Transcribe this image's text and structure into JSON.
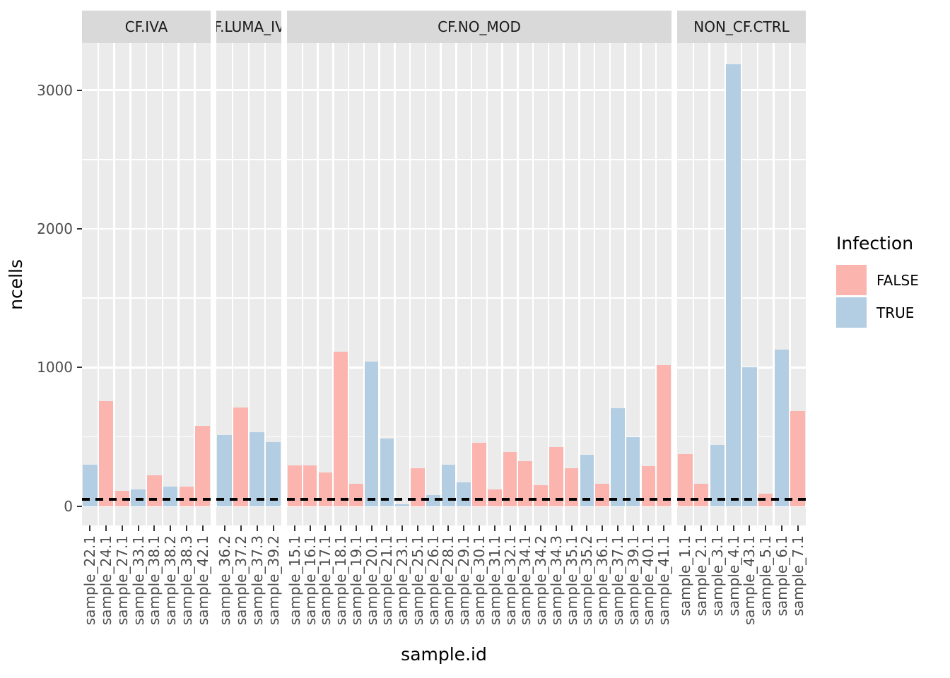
{
  "axes": {
    "x_title": "sample.id",
    "y_title": "ncells",
    "y_ticks": [
      0,
      1000,
      2000,
      3000
    ],
    "y_minor_ticks": [
      500,
      1500,
      2500
    ]
  },
  "legend": {
    "title": "Infection",
    "items": [
      {
        "label": "FALSE",
        "color": "#FBB4AE"
      },
      {
        "label": "TRUE",
        "color": "#B3CDE3"
      }
    ]
  },
  "reference_line": {
    "value": 50,
    "color": "#000000",
    "style": "dashed"
  },
  "colors": {
    "panel_bg": "#EBEBEB",
    "strip_bg": "#D9D9D9",
    "grid": "#FFFFFF",
    "axis_text": "#4D4D4D",
    "strip_text": "#1A1A1A",
    "tick": "#333333",
    "false_fill": "#FBB4AE",
    "true_fill": "#B3CDE3"
  },
  "chart_data": {
    "type": "bar",
    "title": "",
    "xlabel": "sample.id",
    "ylabel": "ncells",
    "ylim": [
      0,
      3340
    ],
    "legend_title": "Infection",
    "hline": 50,
    "facets": [
      {
        "label": "CF.IVA",
        "samples": [
          {
            "id": "sample_22.1",
            "infection": "TRUE",
            "ncells": 297
          },
          {
            "id": "sample_24.1",
            "infection": "FALSE",
            "ncells": 755
          },
          {
            "id": "sample_27.1",
            "infection": "FALSE",
            "ncells": 110
          },
          {
            "id": "sample_33.1",
            "infection": "TRUE",
            "ncells": 122
          },
          {
            "id": "sample_38.1",
            "infection": "FALSE",
            "ncells": 220
          },
          {
            "id": "sample_38.2",
            "infection": "TRUE",
            "ncells": 138
          },
          {
            "id": "sample_38.3",
            "infection": "FALSE",
            "ncells": 140
          },
          {
            "id": "sample_42.1",
            "infection": "FALSE",
            "ncells": 577
          }
        ]
      },
      {
        "label": "CF.LUMA_IVA",
        "samples": [
          {
            "id": "sample_36.2",
            "infection": "TRUE",
            "ncells": 512
          },
          {
            "id": "sample_37.2",
            "infection": "FALSE",
            "ncells": 710
          },
          {
            "id": "sample_37.3",
            "infection": "TRUE",
            "ncells": 532
          },
          {
            "id": "sample_39.2",
            "infection": "TRUE",
            "ncells": 463
          }
        ]
      },
      {
        "label": "CF.NO_MOD",
        "samples": [
          {
            "id": "sample_15.1",
            "infection": "FALSE",
            "ncells": 292
          },
          {
            "id": "sample_16.1",
            "infection": "FALSE",
            "ncells": 292
          },
          {
            "id": "sample_17.1",
            "infection": "FALSE",
            "ncells": 241
          },
          {
            "id": "sample_18.1",
            "infection": "FALSE",
            "ncells": 1115
          },
          {
            "id": "sample_19.1",
            "infection": "FALSE",
            "ncells": 160
          },
          {
            "id": "sample_20.1",
            "infection": "TRUE",
            "ncells": 1041
          },
          {
            "id": "sample_21.1",
            "infection": "TRUE",
            "ncells": 488
          },
          {
            "id": "sample_23.1",
            "infection": "TRUE",
            "ncells": 15
          },
          {
            "id": "sample_25.1",
            "infection": "FALSE",
            "ncells": 275
          },
          {
            "id": "sample_26.1",
            "infection": "TRUE",
            "ncells": 80
          },
          {
            "id": "sample_28.1",
            "infection": "TRUE",
            "ncells": 297
          },
          {
            "id": "sample_29.1",
            "infection": "TRUE",
            "ncells": 173
          },
          {
            "id": "sample_30.1",
            "infection": "FALSE",
            "ncells": 458
          },
          {
            "id": "sample_31.1",
            "infection": "FALSE",
            "ncells": 122
          },
          {
            "id": "sample_32.1",
            "infection": "FALSE",
            "ncells": 390
          },
          {
            "id": "sample_34.1",
            "infection": "FALSE",
            "ncells": 325
          },
          {
            "id": "sample_34.2",
            "infection": "FALSE",
            "ncells": 152
          },
          {
            "id": "sample_34.3",
            "infection": "FALSE",
            "ncells": 424
          },
          {
            "id": "sample_35.1",
            "infection": "FALSE",
            "ncells": 275
          },
          {
            "id": "sample_35.2",
            "infection": "TRUE",
            "ncells": 368
          },
          {
            "id": "sample_36.1",
            "infection": "FALSE",
            "ncells": 161
          },
          {
            "id": "sample_37.1",
            "infection": "TRUE",
            "ncells": 707
          },
          {
            "id": "sample_39.1",
            "infection": "TRUE",
            "ncells": 495
          },
          {
            "id": "sample_40.1",
            "infection": "FALSE",
            "ncells": 288
          },
          {
            "id": "sample_41.1",
            "infection": "FALSE",
            "ncells": 1017
          }
        ]
      },
      {
        "label": "NON_CF.CTRL",
        "samples": [
          {
            "id": "sample_1.1",
            "infection": "FALSE",
            "ncells": 376
          },
          {
            "id": "sample_2.1",
            "infection": "FALSE",
            "ncells": 161
          },
          {
            "id": "sample_3.1",
            "infection": "TRUE",
            "ncells": 441
          },
          {
            "id": "sample_4.1",
            "infection": "TRUE",
            "ncells": 3186
          },
          {
            "id": "sample_43.1",
            "infection": "TRUE",
            "ncells": 1000
          },
          {
            "id": "sample_5.1",
            "infection": "FALSE",
            "ncells": 88
          },
          {
            "id": "sample_6.1",
            "infection": "TRUE",
            "ncells": 1131
          },
          {
            "id": "sample_7.1",
            "infection": "FALSE",
            "ncells": 683
          }
        ]
      }
    ]
  }
}
